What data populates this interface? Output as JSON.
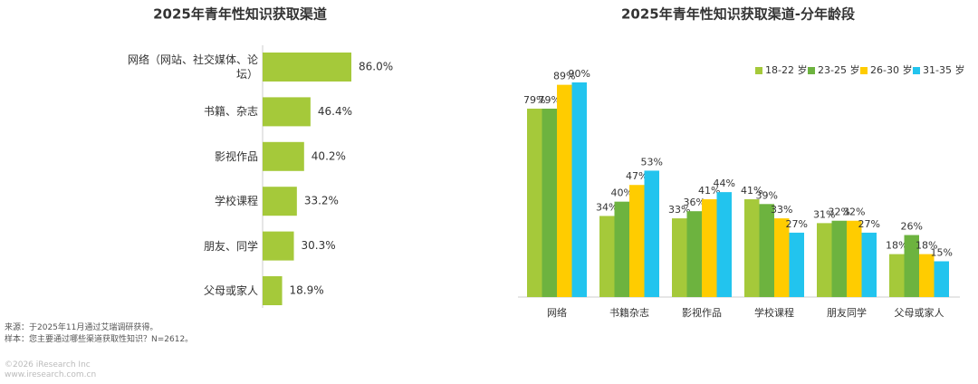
{
  "chart_data": [
    {
      "type": "bar",
      "orientation": "horizontal",
      "title": "2025年青年性知识获取渠道",
      "categories": [
        "网络（网站、社交媒体、论坛）",
        "书籍、杂志",
        "影视作品",
        "学校课程",
        "朋友、同学",
        "父母或家人"
      ],
      "values": [
        86.0,
        46.4,
        40.2,
        33.2,
        30.3,
        18.9
      ],
      "value_labels": [
        "86.0%",
        "46.4%",
        "40.2%",
        "33.2%",
        "30.3%",
        "18.9%"
      ],
      "color": "#a5c93a"
    },
    {
      "type": "grouped_bar",
      "title": "2025年青年性知识获取渠道-分年龄段",
      "categories": [
        "网络",
        "书籍杂志",
        "影视作品",
        "学校课程",
        "朋友同学",
        "父母或家人"
      ],
      "legend": "top-right",
      "series": [
        {
          "name": "18-22 岁",
          "color": "#a5c93a",
          "values": [
            79,
            34,
            33,
            41,
            31,
            18
          ],
          "value_labels": [
            "79%",
            "34%",
            "33%",
            "41%",
            "31%",
            "18%"
          ]
        },
        {
          "name": "23-25 岁",
          "color": "#6db33f",
          "values": [
            79,
            40,
            36,
            39,
            32,
            26
          ],
          "value_labels": [
            "79%",
            "40%",
            "36%",
            "39%",
            "32%",
            "26%"
          ]
        },
        {
          "name": "26-30 岁",
          "color": "#ffcc00",
          "values": [
            89,
            47,
            41,
            33,
            32,
            18
          ],
          "value_labels": [
            "89%",
            "47%",
            "41%",
            "33%",
            "32%",
            "18%"
          ]
        },
        {
          "name": "31-35 岁",
          "color": "#22c4ee",
          "values": [
            90,
            53,
            44,
            27,
            27,
            15
          ],
          "value_labels": [
            "90%",
            "53%",
            "44%",
            "27%",
            "27%",
            "15%"
          ]
        }
      ]
    }
  ],
  "notes": {
    "source": "来源：于2025年11月通过艾瑞调研获得。",
    "sample": "样本：您主要通过哪些渠道获取性知识？N=2612。",
    "copyright": "©2026 iResearch Inc",
    "website": "www.iresearch.com.cn"
  }
}
